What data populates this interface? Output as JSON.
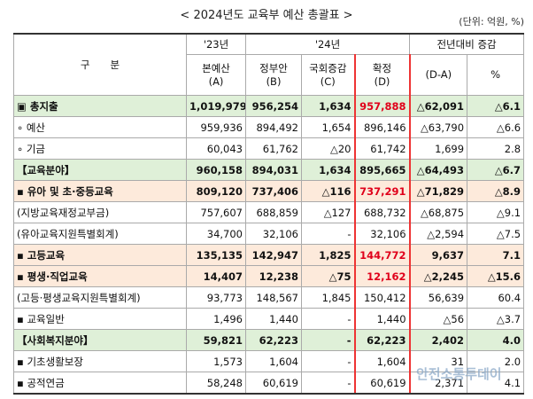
{
  "title": "< 2024년도 교육부 예산 총괄표 >",
  "unit": "(단위: 억원, %)",
  "header": {
    "division": "구　　분",
    "y23": "'23년",
    "y24": "'24년",
    "change": "전년대비 증감",
    "cols": [
      "본예산\n(A)",
      "정부안\n(B)",
      "국회증감\n(C)",
      "확정\n(D)",
      "(D-A)",
      "%"
    ]
  },
  "rows": [
    [
      "▣ 총지출",
      "1,019,979",
      "956,254",
      "1,634",
      "957,888",
      "△62,091",
      "△6.1"
    ],
    [
      "∘ 예산",
      "959,936",
      "894,492",
      "1,654",
      "896,146",
      "△63,790",
      "△6.6"
    ],
    [
      "∘ 기금",
      "60,043",
      "61,762",
      "△20",
      "61,742",
      "1,699",
      "2.8"
    ],
    [
      "【교육분야】",
      "960,158",
      "894,031",
      "1,634",
      "895,665",
      "△64,493",
      "△6.7"
    ],
    [
      "▪ 유아 및 초·중등교육",
      "809,120",
      "737,406",
      "△116",
      "737,291",
      "△71,829",
      "△8.9"
    ],
    [
      "(지방교육재정교부금)",
      "757,607",
      "688,859",
      "△127",
      "688,732",
      "△68,875",
      "△9.1"
    ],
    [
      "(유아교육지원특별회계)",
      "34,700",
      "32,106",
      "-",
      "32,106",
      "△2,594",
      "△7.5"
    ],
    [
      "▪ 고등교육",
      "135,135",
      "142,947",
      "1,825",
      "144,772",
      "9,637",
      "7.1"
    ],
    [
      "▪ 평생·직업교육",
      "14,407",
      "12,238",
      "△75",
      "12,162",
      "△2,245",
      "△15.6"
    ],
    [
      "(고등·평생교육지원특별회계)",
      "93,773",
      "148,567",
      "1,845",
      "150,412",
      "56,639",
      "60.4"
    ],
    [
      "▪ 교육일반",
      "1,496",
      "1,440",
      "-",
      "1,440",
      "△56",
      "△3.7"
    ],
    [
      "【사회복지분야】",
      "59,821",
      "62,223",
      "-",
      "62,223",
      "2,402",
      "4.0"
    ],
    [
      "▪ 기초생활보장",
      "1,573",
      "1,604",
      "-",
      "1,604",
      "31",
      "2.0"
    ],
    [
      "▪ 공적연금",
      "58,248",
      "60,619",
      "-",
      "60,619",
      "2,371",
      "4.1"
    ]
  ],
  "watermark": "안전소통투데이"
}
